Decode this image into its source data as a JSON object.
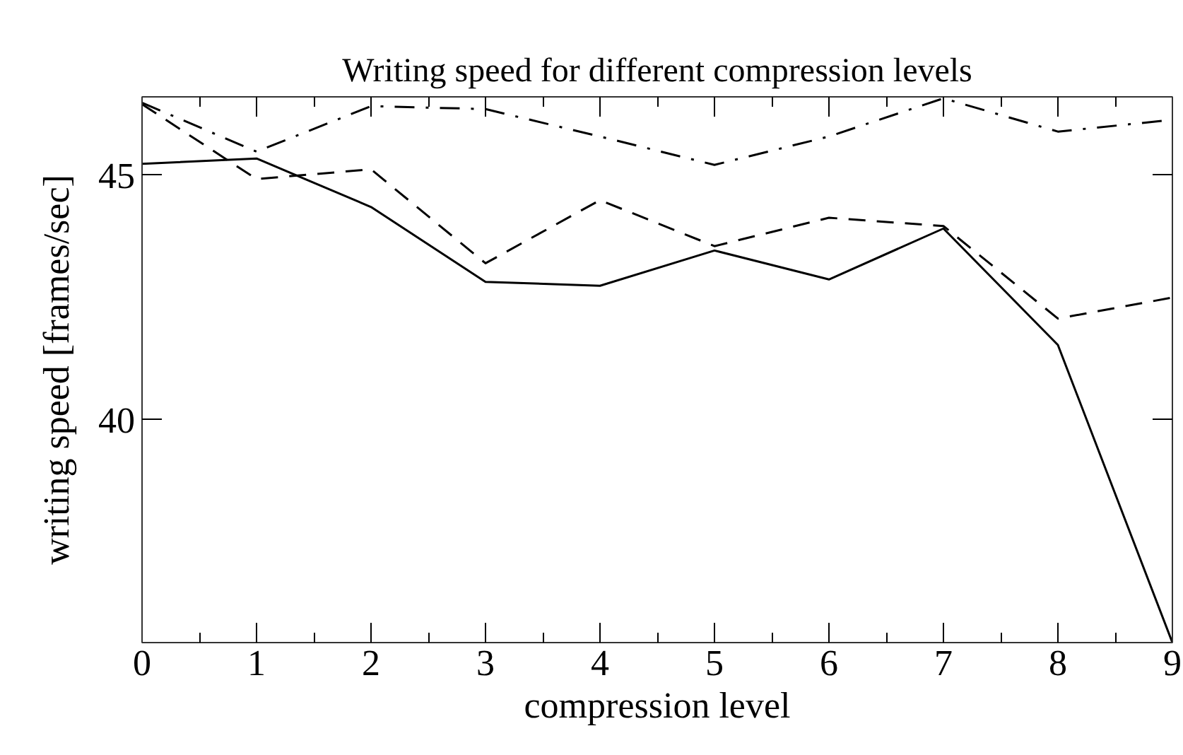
{
  "chart_data": {
    "type": "line",
    "title": "Writing speed for different compression levels",
    "xlabel": "compression level",
    "ylabel": "writing speed [frames/sec]",
    "x": [
      0,
      1,
      2,
      3,
      4,
      5,
      6,
      7,
      8,
      9
    ],
    "xlim": [
      0,
      9
    ],
    "xticks": [
      0,
      1,
      2,
      3,
      4,
      5,
      6,
      7,
      8,
      9
    ],
    "ylim": [
      35.45,
      46.6
    ],
    "yticks": [
      40,
      45
    ],
    "grid": false,
    "series": [
      {
        "color": "#000000",
        "line_style": "solid",
        "values": [
          45.23,
          45.34,
          44.35,
          42.82,
          42.74,
          43.46,
          42.87,
          43.91,
          41.53,
          35.45
        ]
      },
      {
        "color": "#000000",
        "line_style": "dashed",
        "values": [
          46.45,
          44.92,
          45.12,
          43.2,
          44.49,
          43.55,
          44.13,
          43.96,
          42.07,
          42.5
        ]
      },
      {
        "color": "#000000",
        "line_style": "dashdot",
        "values": [
          46.48,
          45.48,
          46.41,
          46.35,
          45.79,
          45.21,
          45.79,
          46.57,
          45.89,
          46.13
        ]
      }
    ]
  }
}
